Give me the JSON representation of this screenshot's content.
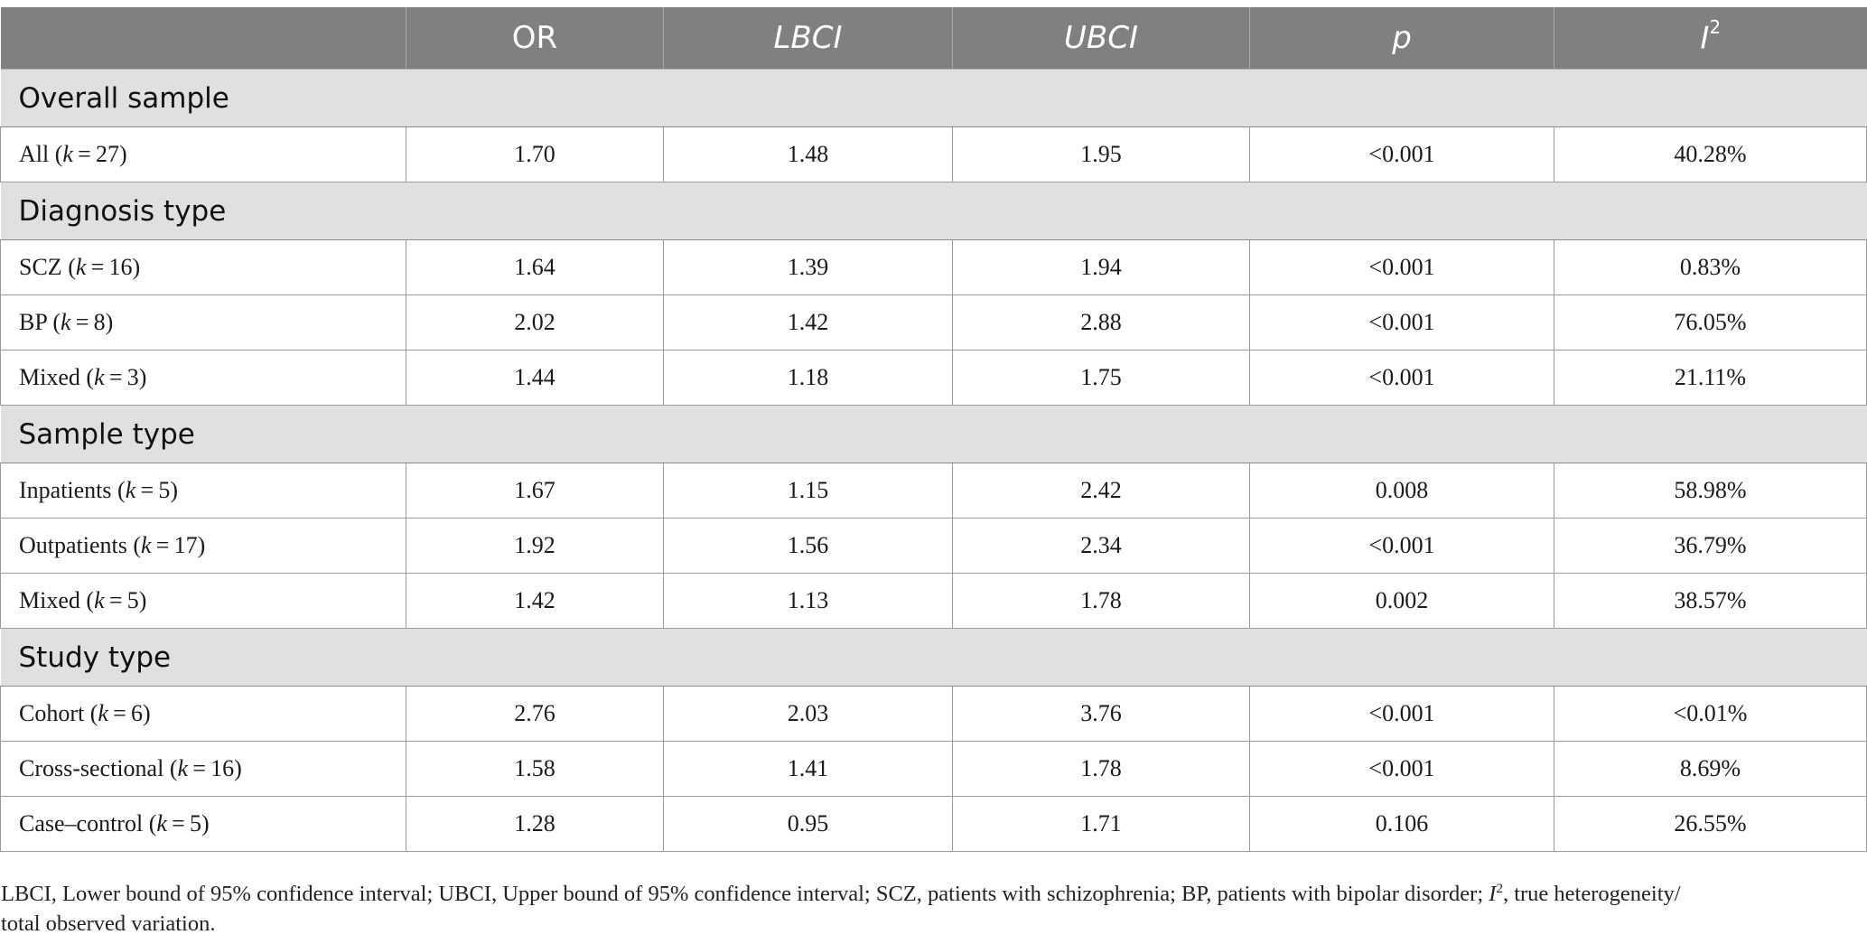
{
  "table": {
    "headers": {
      "label": "",
      "or": "OR",
      "lbci": "LBCI",
      "ubci": "UBCI",
      "p": "p",
      "i2_base": "I",
      "i2_sup": "2"
    },
    "k_symbol": "k",
    "sections": [
      {
        "title": "Overall sample",
        "rows": [
          {
            "label": "All",
            "k": "27",
            "or": "1.70",
            "lbci": "1.48",
            "ubci": "1.95",
            "p": "<0.001",
            "i2": "40.28%"
          }
        ]
      },
      {
        "title": "Diagnosis type",
        "rows": [
          {
            "label": "SCZ",
            "k": "16",
            "or": "1.64",
            "lbci": "1.39",
            "ubci": "1.94",
            "p": "<0.001",
            "i2": "0.83%"
          },
          {
            "label": "BP",
            "k": "8",
            "or": "2.02",
            "lbci": "1.42",
            "ubci": "2.88",
            "p": "<0.001",
            "i2": "76.05%"
          },
          {
            "label": "Mixed",
            "k": "3",
            "or": "1.44",
            "lbci": "1.18",
            "ubci": "1.75",
            "p": "<0.001",
            "i2": "21.11%"
          }
        ]
      },
      {
        "title": "Sample type",
        "rows": [
          {
            "label": "Inpatients",
            "k": "5",
            "or": "1.67",
            "lbci": "1.15",
            "ubci": "2.42",
            "p": "0.008",
            "i2": "58.98%"
          },
          {
            "label": "Outpatients",
            "k": "17",
            "or": "1.92",
            "lbci": "1.56",
            "ubci": "2.34",
            "p": "<0.001",
            "i2": "36.79%"
          },
          {
            "label": "Mixed",
            "k": "5",
            "or": "1.42",
            "lbci": "1.13",
            "ubci": "1.78",
            "p": "0.002",
            "i2": "38.57%"
          }
        ]
      },
      {
        "title": "Study type",
        "rows": [
          {
            "label": "Cohort",
            "k": "6",
            "or": "2.76",
            "lbci": "2.03",
            "ubci": "3.76",
            "p": "<0.001",
            "i2": "<0.01%"
          },
          {
            "label": "Cross-sectional",
            "k": "16",
            "or": "1.58",
            "lbci": "1.41",
            "ubci": "1.78",
            "p": "<0.001",
            "i2": "8.69%"
          },
          {
            "label": "Case–control",
            "k": "5",
            "or": "1.28",
            "lbci": "0.95",
            "ubci": "1.71",
            "p": "0.106",
            "i2": "26.55%"
          }
        ]
      }
    ]
  },
  "footnote": {
    "part1": "LBCI, Lower bound of 95% confidence interval; UBCI, Upper bound of 95% confidence interval; SCZ, patients with schizophrenia; BP, patients with bipolar disorder; ",
    "i_base": "I",
    "i_sup": "2",
    "part2": ", true heterogeneity/",
    "line2": "total observed variation."
  },
  "colors": {
    "header_bg": "#808080",
    "section_bg": "#e1e0e1",
    "border": "#9b9b9b"
  }
}
